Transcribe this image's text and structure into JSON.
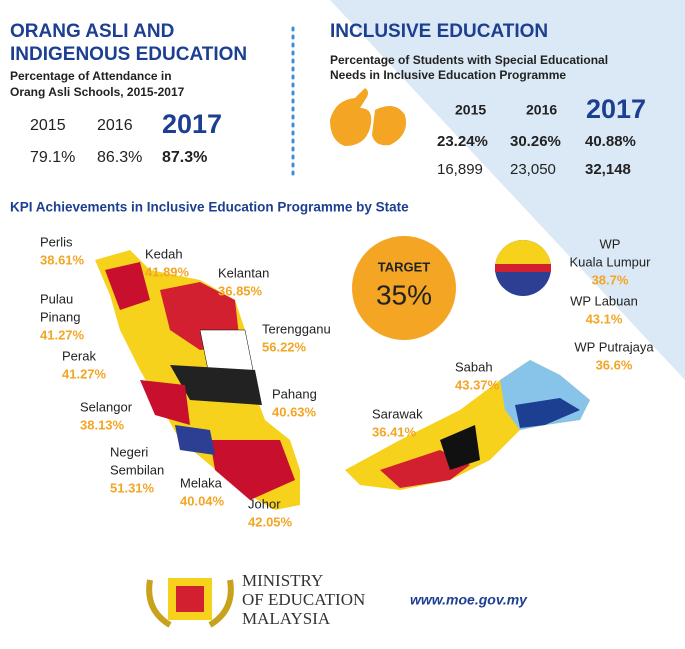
{
  "orang_asli": {
    "title_lines": [
      "ORANG ASLI AND",
      "INDIGENOUS EDUCATION"
    ],
    "subtitle_lines": [
      "Percentage of Attendance in",
      "Orang Asli Schools, 2015-2017"
    ],
    "years": [
      "2015",
      "2016",
      "2017"
    ],
    "values": [
      "79.1%",
      "86.3%",
      "87.3%"
    ]
  },
  "inclusive": {
    "title": "INCLUSIVE EDUCATION",
    "subtitle_lines": [
      "Percentage of Students with Special Educational",
      "Needs in Inclusive Education Programme"
    ],
    "years": [
      "2015",
      "2016",
      "2017"
    ],
    "percentages": [
      "23.24%",
      "30.26%",
      "40.88%"
    ],
    "counts": [
      "16,899",
      "23,050",
      "32,148"
    ]
  },
  "kpi": {
    "title": "KPI Achievements in Inclusive Education Programme by State",
    "target_label": "TARGET",
    "target_value": "35%",
    "states": [
      {
        "name_lines": [
          "Perlis"
        ],
        "value": "38.61%"
      },
      {
        "name_lines": [
          "Kedah"
        ],
        "value": "41.89%"
      },
      {
        "name_lines": [
          "Kelantan"
        ],
        "value": "36.85%"
      },
      {
        "name_lines": [
          "Pulau",
          "Pinang"
        ],
        "value": "41.27%"
      },
      {
        "name_lines": [
          "Terengganu"
        ],
        "value": "56.22%"
      },
      {
        "name_lines": [
          "Perak"
        ],
        "value": "41.27%"
      },
      {
        "name_lines": [
          "Pahang"
        ],
        "value": "40.63%"
      },
      {
        "name_lines": [
          "Selangor"
        ],
        "value": "38.13%"
      },
      {
        "name_lines": [
          "Negeri",
          "Sembilan"
        ],
        "value": "51.31%"
      },
      {
        "name_lines": [
          "Melaka"
        ],
        "value": "40.04%"
      },
      {
        "name_lines": [
          "Johor"
        ],
        "value": "42.05%"
      },
      {
        "name_lines": [
          "Sabah"
        ],
        "value": "43.37%"
      },
      {
        "name_lines": [
          "Sarawak"
        ],
        "value": "36.41%"
      },
      {
        "name_lines": [
          "WP",
          "Kuala Lumpur"
        ],
        "value": "38.7%"
      },
      {
        "name_lines": [
          "WP Labuan"
        ],
        "value": "43.1%"
      },
      {
        "name_lines": [
          "WP Putrajaya"
        ],
        "value": "36.6%"
      }
    ]
  },
  "footer": {
    "ministry_lines": [
      "MINISTRY",
      "OF EDUCATION",
      "MALAYSIA"
    ],
    "url": "www.moe.gov.my"
  }
}
